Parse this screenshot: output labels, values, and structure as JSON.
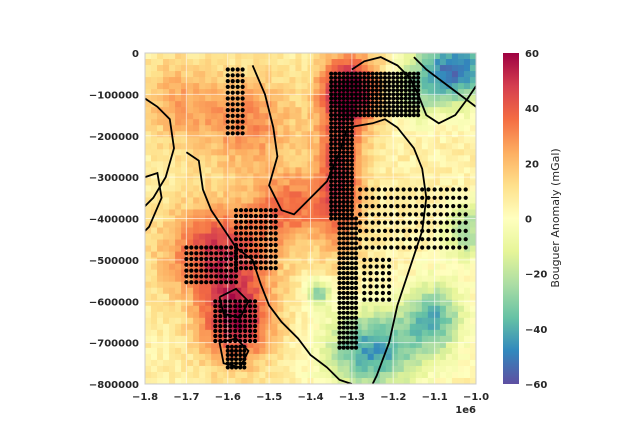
{
  "chart_data": {
    "type": "heatmap",
    "title": "",
    "xlabel": "",
    "ylabel": "",
    "x_offset_label": "1e6",
    "xlim": [
      -1.8,
      -1.0
    ],
    "ylim": [
      -800000,
      0
    ],
    "x_ticks": [
      -1.8,
      -1.7,
      -1.6,
      -1.5,
      -1.4,
      -1.3,
      -1.2,
      -1.1,
      -1.0
    ],
    "x_tick_labels": [
      "−1.8",
      "−1.7",
      "−1.6",
      "−1.5",
      "−1.4",
      "−1.3",
      "−1.2",
      "−1.1",
      "−1.0"
    ],
    "y_ticks": [
      0,
      -100000,
      -200000,
      -300000,
      -400000,
      -500000,
      -600000,
      -700000,
      -800000
    ],
    "y_tick_labels": [
      "0",
      "−100000",
      "−200000",
      "−300000",
      "−400000",
      "−500000",
      "−600000",
      "−700000",
      "−800000"
    ],
    "grid": true,
    "colormap": "Spectral",
    "colormap_stops": [
      "#5e4fa2",
      "#3288bd",
      "#66c2a5",
      "#abdda4",
      "#e6f598",
      "#ffffbf",
      "#fee08b",
      "#fdae61",
      "#f46d43",
      "#d53e4f",
      "#9e0142"
    ],
    "colorbar": {
      "label": "Bouguer Anomaly (mGal)",
      "vmin": -60,
      "vmax": 60,
      "ticks": [
        60,
        40,
        20,
        0,
        -20,
        -40,
        -60
      ],
      "tick_labels": [
        "60",
        "40",
        "20",
        "0",
        "−20",
        "−40",
        "−60"
      ]
    },
    "heatmap_grid": {
      "nx": 55,
      "ny": 55,
      "anomaly_centers": [
        {
          "x": -1.3,
          "y": -90000,
          "value": 55,
          "spread_x": 0.05,
          "spread_y": 60000
        },
        {
          "x": -1.33,
          "y": -300000,
          "value": 40,
          "spread_x": 0.04,
          "spread_y": 120000
        },
        {
          "x": -1.62,
          "y": -480000,
          "value": 42,
          "spread_x": 0.09,
          "spread_y": 80000
        },
        {
          "x": -1.58,
          "y": -650000,
          "value": 48,
          "spread_x": 0.06,
          "spread_y": 70000
        },
        {
          "x": -1.55,
          "y": -170000,
          "value": 25,
          "spread_x": 0.08,
          "spread_y": 80000
        },
        {
          "x": -1.72,
          "y": -120000,
          "value": 18,
          "spread_x": 0.06,
          "spread_y": 70000
        },
        {
          "x": -1.45,
          "y": -370000,
          "value": 28,
          "spread_x": 0.06,
          "spread_y": 60000
        },
        {
          "x": -1.05,
          "y": -40000,
          "value": -58,
          "spread_x": 0.07,
          "spread_y": 60000
        },
        {
          "x": -1.25,
          "y": -720000,
          "value": -50,
          "spread_x": 0.08,
          "spread_y": 70000
        },
        {
          "x": -1.1,
          "y": -640000,
          "value": -42,
          "spread_x": 0.05,
          "spread_y": 60000
        },
        {
          "x": -1.02,
          "y": -430000,
          "value": -30,
          "spread_x": 0.04,
          "spread_y": 50000
        },
        {
          "x": -1.15,
          "y": -100000,
          "value": -18,
          "spread_x": 0.05,
          "spread_y": 50000
        },
        {
          "x": -1.38,
          "y": -580000,
          "value": -35,
          "spread_x": 0.02,
          "spread_y": 25000
        }
      ]
    },
    "scatter_points": {
      "color": "#000000",
      "regions": [
        {
          "x_range": [
            -1.35,
            -1.14
          ],
          "y_range": [
            -150000,
            -50000
          ],
          "step_x": 0.01,
          "step_y": 10000
        },
        {
          "x_range": [
            -1.35,
            -1.3
          ],
          "y_range": [
            -400000,
            -150000
          ],
          "step_x": 0.01,
          "step_y": 10000
        },
        {
          "x_range": [
            -1.33,
            -1.29
          ],
          "y_range": [
            -720000,
            -400000
          ],
          "step_x": 0.01,
          "step_y": 12000
        },
        {
          "x_range": [
            -1.58,
            -1.48
          ],
          "y_range": [
            -520000,
            -380000
          ],
          "step_x": 0.012,
          "step_y": 14000
        },
        {
          "x_range": [
            -1.7,
            -1.58
          ],
          "y_range": [
            -560000,
            -470000
          ],
          "step_x": 0.012,
          "step_y": 14000
        },
        {
          "x_range": [
            -1.63,
            -1.53
          ],
          "y_range": [
            -700000,
            -600000
          ],
          "step_x": 0.012,
          "step_y": 12000
        },
        {
          "x_range": [
            -1.6,
            -1.56
          ],
          "y_range": [
            -760000,
            -710000
          ],
          "step_x": 0.01,
          "step_y": 10000
        },
        {
          "x_range": [
            -1.28,
            -1.02
          ],
          "y_range": [
            -470000,
            -330000
          ],
          "step_x": 0.015,
          "step_y": 20000
        },
        {
          "x_range": [
            -1.6,
            -1.56
          ],
          "y_range": [
            -200000,
            -40000
          ],
          "step_x": 0.012,
          "step_y": 14000
        },
        {
          "x_range": [
            -1.27,
            -1.2
          ],
          "y_range": [
            -600000,
            -500000
          ],
          "step_x": 0.015,
          "step_y": 16000
        }
      ]
    },
    "boundary_lines": {
      "color": "#000000",
      "lines": [
        [
          [
            -1.54,
            -30000
          ],
          [
            -1.51,
            -100000
          ],
          [
            -1.49,
            -180000
          ],
          [
            -1.48,
            -250000
          ],
          [
            -1.5,
            -320000
          ],
          [
            -1.47,
            -380000
          ],
          [
            -1.44,
            -390000
          ],
          [
            -1.41,
            -360000
          ],
          [
            -1.36,
            -310000
          ],
          [
            -1.33,
            -240000
          ],
          [
            -1.31,
            -180000
          ],
          [
            -1.25,
            -170000
          ],
          [
            -1.22,
            -160000
          ],
          [
            -1.19,
            -180000
          ],
          [
            -1.15,
            -230000
          ],
          [
            -1.13,
            -280000
          ],
          [
            -1.12,
            -350000
          ],
          [
            -1.13,
            -430000
          ],
          [
            -1.16,
            -520000
          ],
          [
            -1.19,
            -610000
          ],
          [
            -1.21,
            -700000
          ],
          [
            -1.24,
            -780000
          ],
          [
            -1.25,
            -800000
          ]
        ],
        [
          [
            -1.8,
            -110000
          ],
          [
            -1.77,
            -130000
          ],
          [
            -1.74,
            -160000
          ],
          [
            -1.73,
            -230000
          ],
          [
            -1.75,
            -300000
          ],
          [
            -1.78,
            -350000
          ],
          [
            -1.8,
            -370000
          ]
        ],
        [
          [
            -1.8,
            -300000
          ],
          [
            -1.77,
            -290000
          ],
          [
            -1.76,
            -350000
          ],
          [
            -1.79,
            -420000
          ],
          [
            -1.8,
            -430000
          ]
        ],
        [
          [
            -1.7,
            -240000
          ],
          [
            -1.67,
            -260000
          ],
          [
            -1.66,
            -330000
          ],
          [
            -1.64,
            -380000
          ],
          [
            -1.62,
            -410000
          ],
          [
            -1.6,
            -440000
          ],
          [
            -1.58,
            -470000
          ],
          [
            -1.54,
            -500000
          ],
          [
            -1.52,
            -560000
          ],
          [
            -1.5,
            -610000
          ],
          [
            -1.47,
            -650000
          ],
          [
            -1.43,
            -690000
          ],
          [
            -1.4,
            -730000
          ],
          [
            -1.36,
            -760000
          ],
          [
            -1.33,
            -790000
          ],
          [
            -1.3,
            -800000
          ]
        ],
        [
          [
            -1.3,
            -40000
          ],
          [
            -1.27,
            -20000
          ],
          [
            -1.23,
            -10000
          ],
          [
            -1.19,
            -30000
          ],
          [
            -1.16,
            -60000
          ],
          [
            -1.14,
            -100000
          ],
          [
            -1.12,
            -150000
          ],
          [
            -1.09,
            -170000
          ],
          [
            -1.05,
            -150000
          ],
          [
            -1.02,
            -110000
          ],
          [
            -1.0,
            -80000
          ]
        ],
        [
          [
            -1.15,
            -10000
          ],
          [
            -1.12,
            -40000
          ],
          [
            -1.08,
            -70000
          ],
          [
            -1.04,
            -100000
          ],
          [
            -1.0,
            -130000
          ]
        ],
        [
          [
            -1.62,
            -590000
          ],
          [
            -1.58,
            -570000
          ],
          [
            -1.55,
            -600000
          ],
          [
            -1.57,
            -640000
          ],
          [
            -1.61,
            -630000
          ],
          [
            -1.62,
            -590000
          ]
        ],
        [
          [
            -1.62,
            -700000
          ],
          [
            -1.58,
            -690000
          ],
          [
            -1.55,
            -720000
          ],
          [
            -1.57,
            -760000
          ],
          [
            -1.61,
            -750000
          ],
          [
            -1.62,
            -700000
          ]
        ]
      ]
    }
  }
}
